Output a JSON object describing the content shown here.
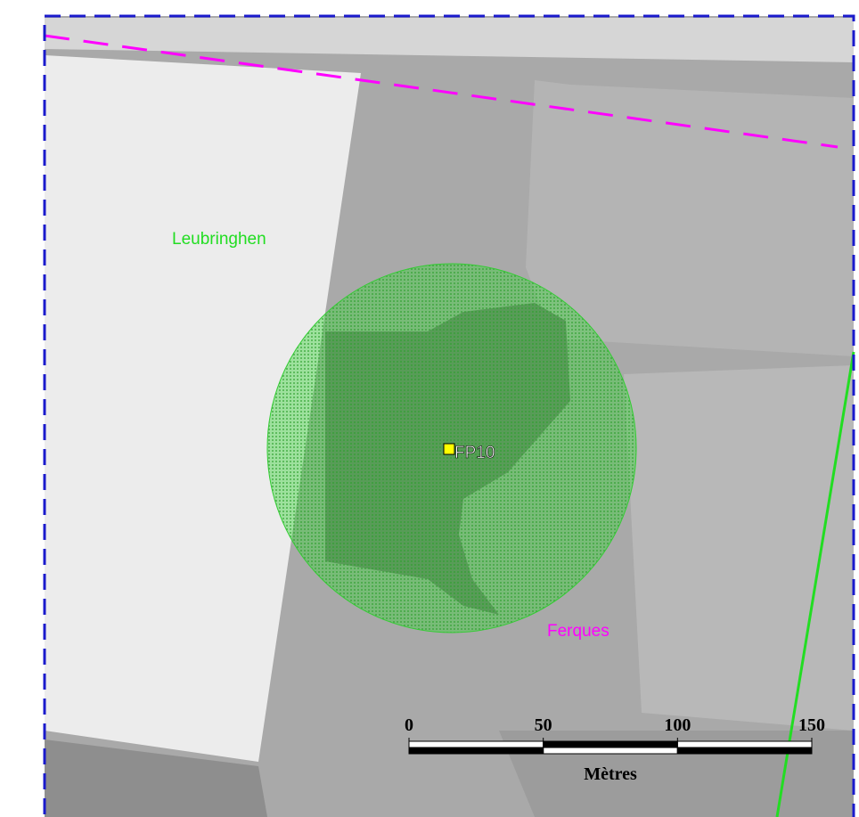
{
  "places": [
    {
      "label": "Leubringhen"
    },
    {
      "label": "Ferques"
    }
  ],
  "site": {
    "label": "FP10"
  },
  "scale_bar": {
    "ticks": [
      0,
      50,
      100,
      150
    ],
    "unit": "Mètres"
  }
}
